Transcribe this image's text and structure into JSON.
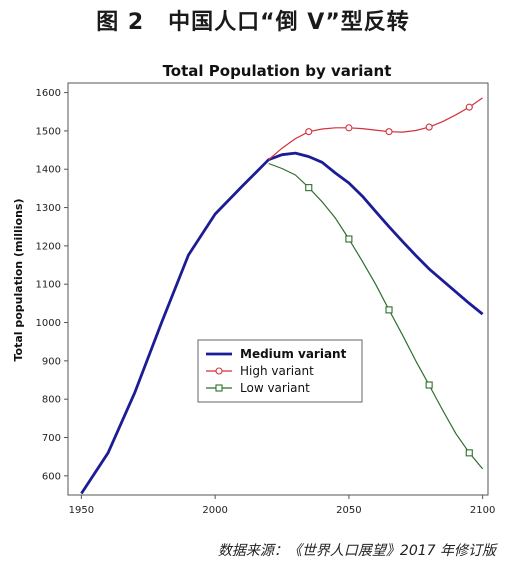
{
  "heading": {
    "figure_no": "图 2",
    "title": "中国人口“倒 V”型反转"
  },
  "source_note": "数据来源：《世界人口展望》2017 年修订版",
  "chart_data": {
    "type": "line",
    "title": "Total Population by variant",
    "xlabel": "",
    "ylabel": "Total population (millions)",
    "xlim": [
      1945,
      2102
    ],
    "ylim": [
      550,
      1625
    ],
    "xticks": [
      1950,
      2000,
      2050,
      2100
    ],
    "yticks": [
      600,
      700,
      800,
      900,
      1000,
      1100,
      1200,
      1300,
      1400,
      1500,
      1600
    ],
    "grid": true,
    "legend_position": "lower-center",
    "series": [
      {
        "name": "Medium variant",
        "color": "#1c1c96",
        "marker": "none",
        "x": [
          1950,
          1960,
          1970,
          1980,
          1990,
          2000,
          2010,
          2015,
          2020,
          2025,
          2030,
          2035,
          2040,
          2045,
          2050,
          2055,
          2060,
          2065,
          2070,
          2075,
          2080,
          2085,
          2090,
          2095,
          2100
        ],
        "y": [
          554,
          660,
          818,
          1000,
          1176,
          1283,
          1355,
          1390,
          1425,
          1438,
          1442,
          1433,
          1418,
          1390,
          1364,
          1330,
          1290,
          1250,
          1212,
          1175,
          1140,
          1110,
          1080,
          1050,
          1022
        ]
      },
      {
        "name": "High variant",
        "color": "#d2323c",
        "marker": "circle",
        "x": [
          2020,
          2025,
          2030,
          2035,
          2040,
          2045,
          2050,
          2055,
          2060,
          2065,
          2070,
          2075,
          2080,
          2085,
          2090,
          2095,
          2100
        ],
        "y": [
          1425,
          1455,
          1480,
          1498,
          1505,
          1508,
          1508,
          1506,
          1502,
          1498,
          1497,
          1501,
          1510,
          1524,
          1542,
          1562,
          1586
        ]
      },
      {
        "name": "Low variant",
        "color": "#2e6e2e",
        "marker": "square",
        "x": [
          2020,
          2025,
          2030,
          2035,
          2040,
          2045,
          2050,
          2055,
          2060,
          2065,
          2070,
          2075,
          2080,
          2085,
          2090,
          2095,
          2100
        ],
        "y": [
          1415,
          1402,
          1385,
          1352,
          1315,
          1272,
          1218,
          1160,
          1100,
          1033,
          968,
          900,
          837,
          772,
          710,
          660,
          618
        ]
      }
    ]
  }
}
